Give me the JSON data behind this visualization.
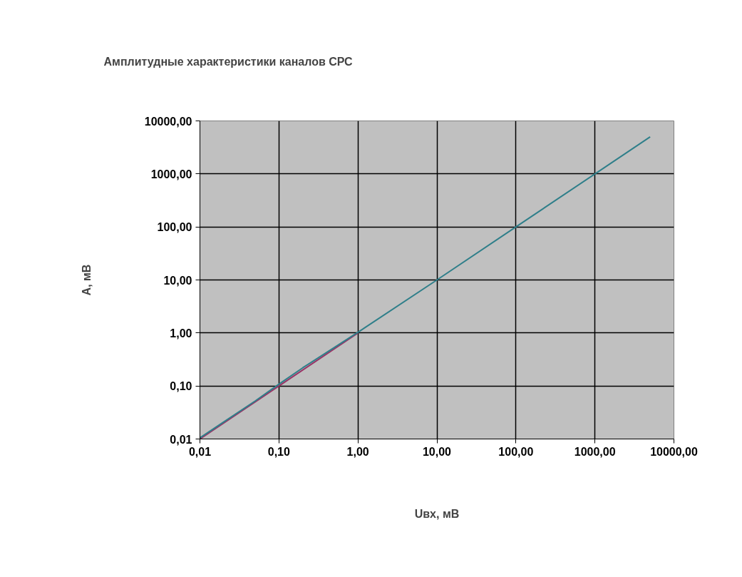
{
  "chart_data": {
    "type": "line",
    "title": "Амплитудные характеристики каналов СРС",
    "xlabel": "Uвх, мВ",
    "ylabel": "А, мВ",
    "log": "xy",
    "grid": true,
    "marker": "none",
    "line_style": "solid",
    "xlim": [
      0.01,
      10000
    ],
    "ylim": [
      0.01,
      10000
    ],
    "xticks": [
      {
        "value": 0.01,
        "label": "0,01"
      },
      {
        "value": 0.1,
        "label": "0,10"
      },
      {
        "value": 1,
        "label": "1,00"
      },
      {
        "value": 10,
        "label": "10,00"
      },
      {
        "value": 100,
        "label": "100,00"
      },
      {
        "value": 1000,
        "label": "1000,00"
      },
      {
        "value": 10000,
        "label": "10000,00"
      }
    ],
    "yticks": [
      {
        "value": 0.01,
        "label": "0,01"
      },
      {
        "value": 0.1,
        "label": "0,10"
      },
      {
        "value": 1,
        "label": "1,00"
      },
      {
        "value": 10,
        "label": "10,00"
      },
      {
        "value": 100,
        "label": "100,00"
      },
      {
        "value": 1000,
        "label": "1000,00"
      },
      {
        "value": 10000,
        "label": "10000,00"
      }
    ],
    "series": [
      {
        "color": "#993366",
        "x": [
          0.01,
          0.1,
          1
        ],
        "values": [
          0.01,
          0.1,
          1
        ]
      },
      {
        "color": "#2f7f8a",
        "x": [
          0.01,
          0.02,
          0.05,
          0.1,
          0.2,
          0.5,
          1,
          10,
          100,
          1000,
          5000
        ],
        "values": [
          0.0105,
          0.021,
          0.052,
          0.108,
          0.22,
          0.53,
          1.03,
          10,
          100,
          1000,
          5000
        ]
      }
    ]
  }
}
